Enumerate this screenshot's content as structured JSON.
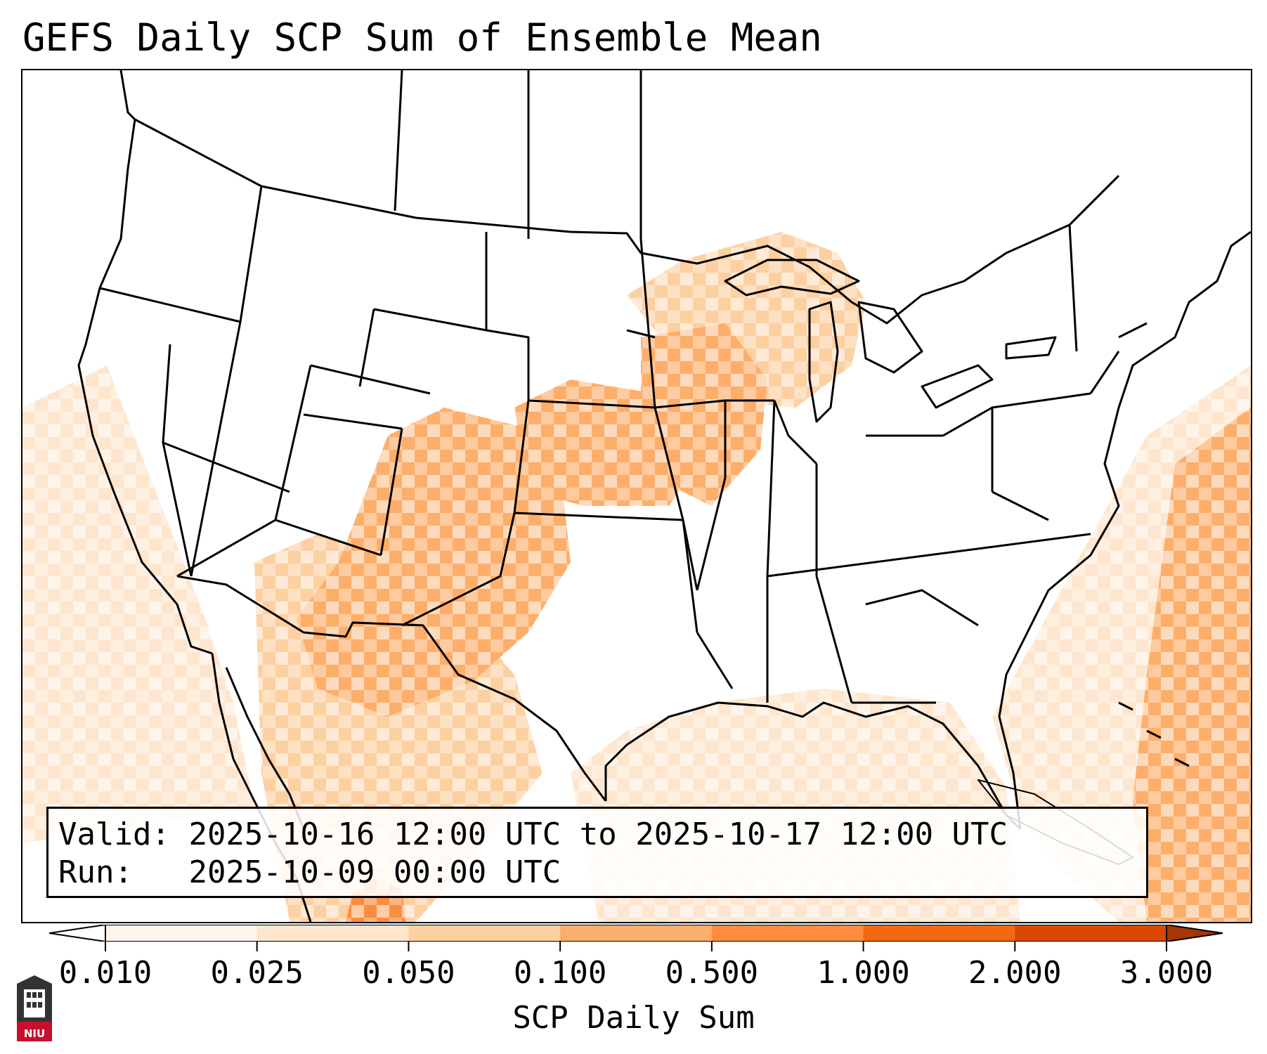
{
  "title": "GEFS Daily SCP Sum of Ensemble Mean",
  "valid_label": "Valid:",
  "valid_text": "2025-10-16 12:00 UTC to 2025-10-17 12:00 UTC",
  "run_label": "Run:",
  "run_text": "2025-10-09 00:00 UTC",
  "colorbar": {
    "label": "SCP Daily Sum",
    "ticks": [
      "0.010",
      "0.025",
      "0.050",
      "0.100",
      "0.500",
      "1.000",
      "2.000",
      "3.000"
    ],
    "colors": [
      "#fff5eb",
      "#fee6ce",
      "#fdd0a2",
      "#fdae6b",
      "#fd8d3c",
      "#f16913",
      "#d94801"
    ],
    "under_color": "#ffffff",
    "over_color": "#a63603"
  },
  "logo": {
    "text": "NIU",
    "color": "#c8102e",
    "icon": "university-seal-icon"
  },
  "regions": [
    {
      "id": "southern-plains-sw",
      "level": 3
    },
    {
      "id": "kansas-nebraska",
      "level": 3
    },
    {
      "id": "iowa-missouri",
      "level": 3
    },
    {
      "id": "upper-midwest",
      "level": 2
    },
    {
      "id": "atlantic-east",
      "level": 3
    },
    {
      "id": "atlantic-west",
      "level": 1
    },
    {
      "id": "gulf-mexico",
      "level": 1
    },
    {
      "id": "mexico-west",
      "level": 2
    },
    {
      "id": "mexico-south",
      "level": 4
    },
    {
      "id": "pacific-west",
      "level": 1
    }
  ]
}
